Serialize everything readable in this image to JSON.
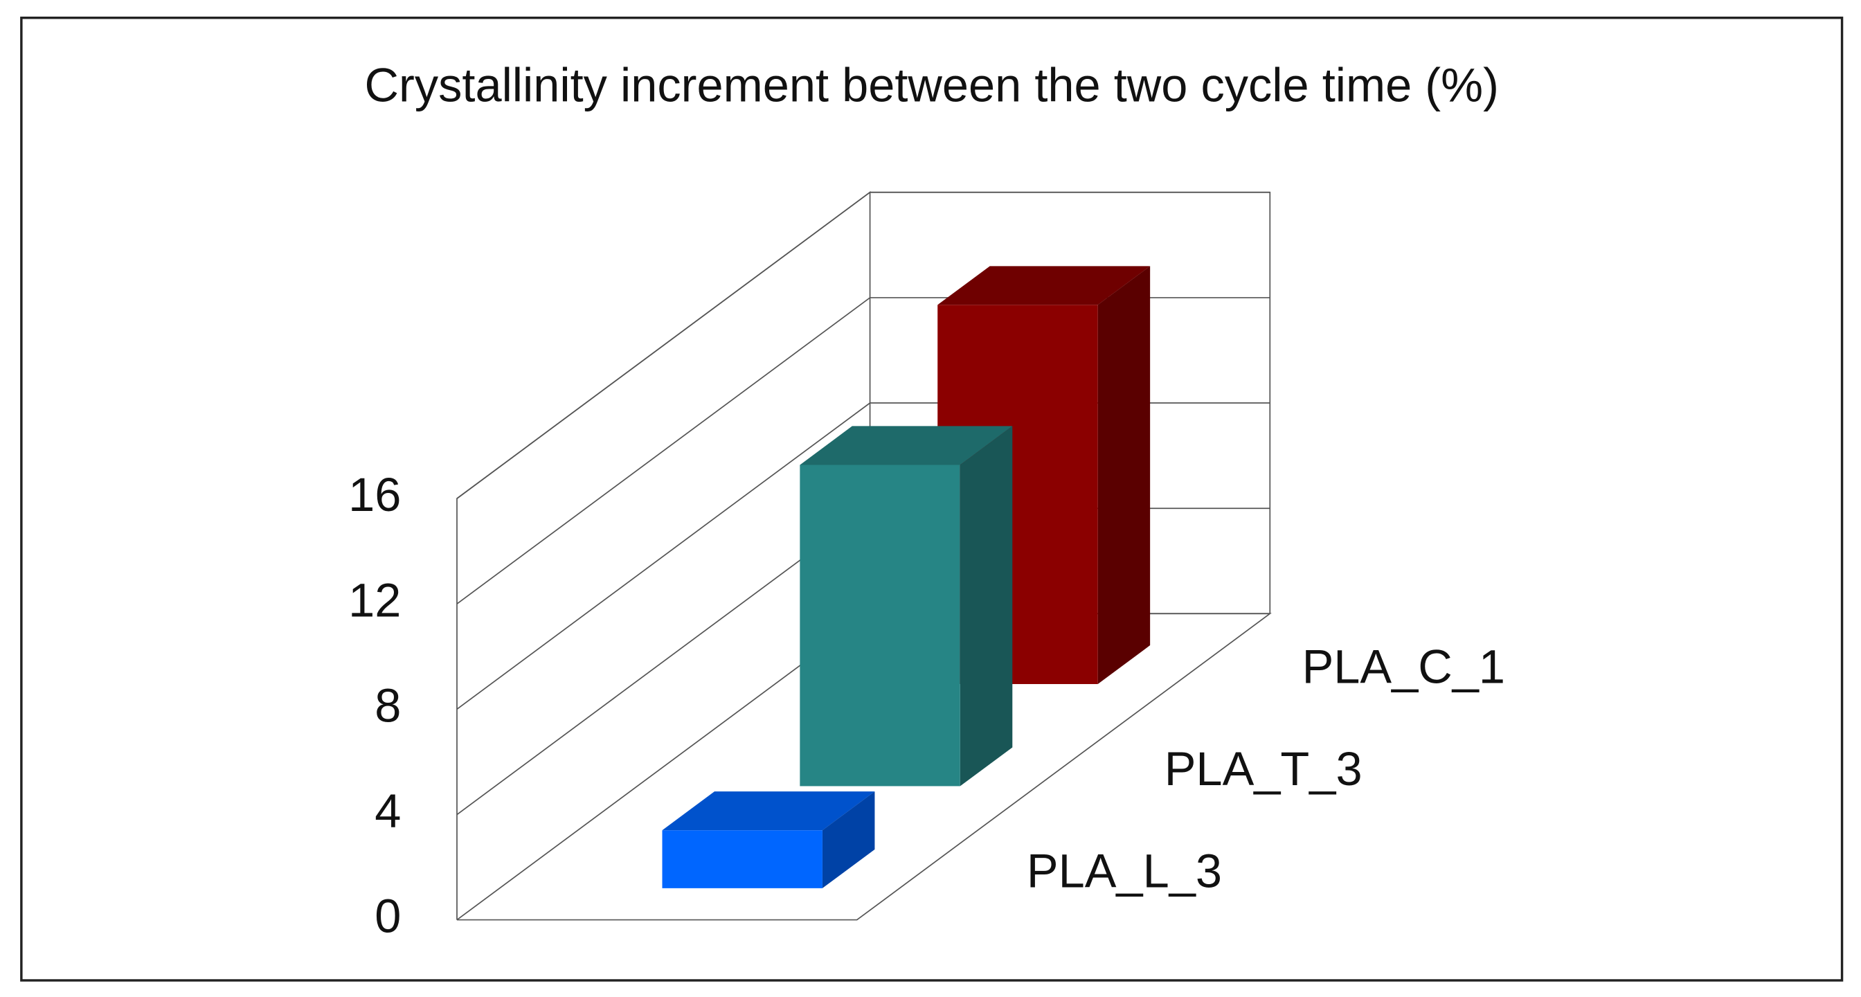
{
  "chart_data": {
    "type": "bar3d",
    "title": "Crystallinity increment between the two cycle time (%)",
    "categories": [
      "PLA_L_3",
      "PLA_T_3",
      "PLA_C_1"
    ],
    "values": [
      2.2,
      12.2,
      14.4
    ],
    "colors": [
      "#0066ff",
      "#268585",
      "#8b0000"
    ],
    "ylim": [
      0,
      16
    ],
    "yticks": [
      0,
      4,
      8,
      12,
      16
    ],
    "grid": true
  }
}
